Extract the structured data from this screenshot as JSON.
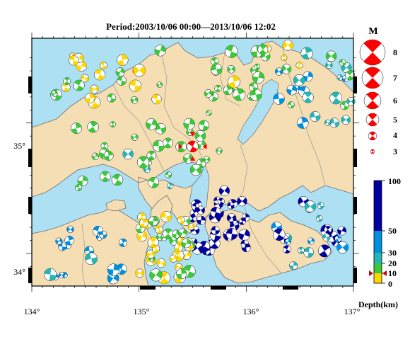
{
  "map": {
    "title": "Period:2003/10/06 00:00––2013/10/06 12:02",
    "x_ticks": [
      "134°",
      "135°",
      "136°",
      "137°"
    ],
    "y_ticks": [
      "35°",
      "34°"
    ],
    "colors": {
      "sea": "#aee0f3",
      "land": "#f5deb3",
      "selected": "#ff0000"
    },
    "extent": {
      "lon": [
        134,
        137
      ],
      "lat": [
        33.75,
        35.65
      ]
    },
    "selected_event": {
      "lon": 135.5,
      "lat": 34.82
    }
  },
  "magnitude_legend": {
    "heading": "M",
    "items": [
      {
        "label": "8",
        "mag": 8
      },
      {
        "label": "7",
        "mag": 7
      },
      {
        "label": "6",
        "mag": 6
      },
      {
        "label": "5",
        "mag": 5
      },
      {
        "label": "4",
        "mag": 4
      },
      {
        "label": "3",
        "mag": 3
      }
    ]
  },
  "depth_legend": {
    "title": "Depth(km)",
    "tick_labels": [
      "100",
      "50",
      "30",
      "20",
      "10",
      "0"
    ],
    "bands": [
      {
        "from": 0,
        "to": 10,
        "color": "#ffd700"
      },
      {
        "from": 10,
        "to": 20,
        "color": "#3cc83c"
      },
      {
        "from": 20,
        "to": 30,
        "color": "#28b4b4"
      },
      {
        "from": 30,
        "to": 50,
        "color": "#0090e0"
      },
      {
        "from": 50,
        "to": 100,
        "color": "#0000a0"
      }
    ],
    "marker_depth": 10
  }
}
